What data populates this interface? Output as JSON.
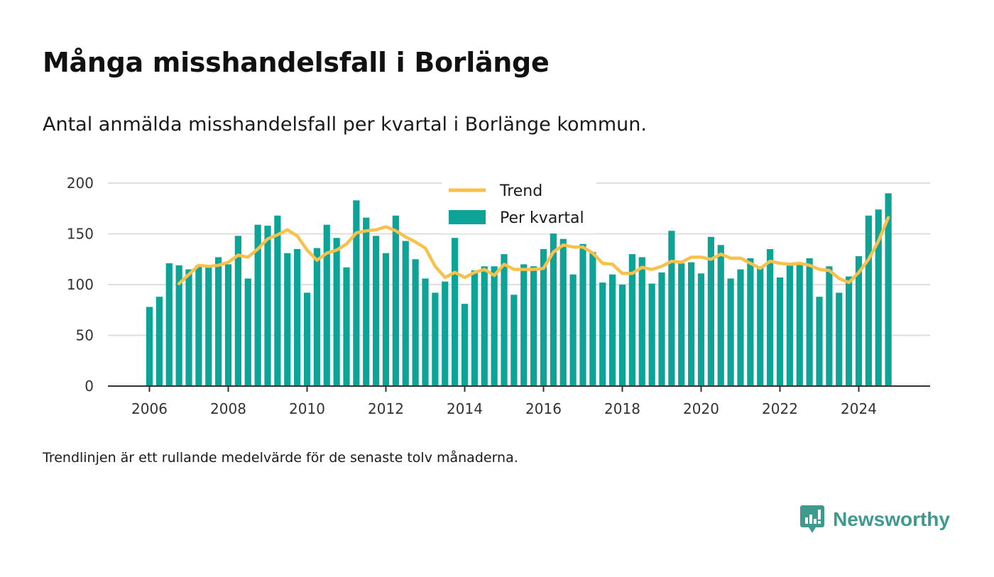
{
  "header": {
    "title": "Många misshandelsfall i Borlänge",
    "subtitle": "Antal anmälda misshandelsfall per kvartal i Borlänge kommun."
  },
  "footnote": "Trendlinjen är ett rullande medelvärde för de senaste tolv månaderna.",
  "brand": {
    "name": "Newsworthy",
    "icon": "newsworthy-logo-icon",
    "color": "#3e9a8f"
  },
  "chart_data": {
    "type": "bar",
    "title": "",
    "xlabel": "",
    "ylabel": "",
    "ylim": [
      0,
      200
    ],
    "yticks": [
      0,
      50,
      100,
      150,
      200
    ],
    "xticks": [
      "2006",
      "2008",
      "2010",
      "2012",
      "2014",
      "2016",
      "2018",
      "2020",
      "2022",
      "2024"
    ],
    "grid": true,
    "legend_placement": "top-center",
    "colors": {
      "bars": "#0da397",
      "trend": "#f8c14c",
      "grid": "#dedede",
      "axis": "#333333"
    },
    "categories": [
      "2006 Q1",
      "2006 Q2",
      "2006 Q3",
      "2006 Q4",
      "2007 Q1",
      "2007 Q2",
      "2007 Q3",
      "2007 Q4",
      "2008 Q1",
      "2008 Q2",
      "2008 Q3",
      "2008 Q4",
      "2009 Q1",
      "2009 Q2",
      "2009 Q3",
      "2009 Q4",
      "2010 Q1",
      "2010 Q2",
      "2010 Q3",
      "2010 Q4",
      "2011 Q1",
      "2011 Q2",
      "2011 Q3",
      "2011 Q4",
      "2012 Q1",
      "2012 Q2",
      "2012 Q3",
      "2012 Q4",
      "2013 Q1",
      "2013 Q2",
      "2013 Q3",
      "2013 Q4",
      "2014 Q1",
      "2014 Q2",
      "2014 Q3",
      "2014 Q4",
      "2015 Q1",
      "2015 Q2",
      "2015 Q3",
      "2015 Q4",
      "2016 Q1",
      "2016 Q2",
      "2016 Q3",
      "2016 Q4",
      "2017 Q1",
      "2017 Q2",
      "2017 Q3",
      "2017 Q4",
      "2018 Q1",
      "2018 Q2",
      "2018 Q3",
      "2018 Q4",
      "2019 Q1",
      "2019 Q2",
      "2019 Q3",
      "2019 Q4",
      "2020 Q1",
      "2020 Q2",
      "2020 Q3",
      "2020 Q4",
      "2021 Q1",
      "2021 Q2",
      "2021 Q3",
      "2021 Q4",
      "2022 Q1",
      "2022 Q2",
      "2022 Q3",
      "2022 Q4",
      "2023 Q1",
      "2023 Q2",
      "2023 Q3",
      "2023 Q4",
      "2024 Q1",
      "2024 Q2",
      "2024 Q3",
      "2024 Q4"
    ],
    "series": [
      {
        "name": "Per kvartal",
        "type": "bar",
        "values": [
          78,
          88,
          121,
          119,
          115,
          119,
          118,
          127,
          120,
          148,
          106,
          159,
          158,
          168,
          131,
          135,
          92,
          136,
          159,
          146,
          117,
          183,
          166,
          148,
          131,
          168,
          143,
          125,
          106,
          92,
          103,
          146,
          81,
          114,
          118,
          118,
          130,
          90,
          120,
          118,
          135,
          153,
          145,
          110,
          140,
          132,
          102,
          110,
          100,
          130,
          127,
          101,
          112,
          153,
          121,
          122,
          111,
          147,
          139,
          106,
          115,
          126,
          118,
          135,
          107,
          120,
          120,
          126,
          88,
          118,
          92,
          108,
          128,
          168,
          174,
          190
        ]
      },
      {
        "name": "Trend",
        "type": "line",
        "values": [
          null,
          null,
          null,
          101,
          110,
          119,
          118,
          119,
          122,
          129,
          127,
          135,
          145,
          149,
          154,
          148,
          134,
          124,
          131,
          134,
          140,
          151,
          153,
          154,
          157,
          153,
          147,
          142,
          136,
          118,
          107,
          112,
          107,
          112,
          115,
          109,
          120,
          115,
          115,
          115,
          116,
          132,
          139,
          137,
          137,
          131,
          121,
          120,
          111,
          111,
          117,
          115,
          118,
          123,
          122,
          127,
          127,
          125,
          130,
          126,
          126,
          121,
          116,
          123,
          121,
          120,
          121,
          119,
          115,
          114,
          106,
          102,
          112,
          125,
          143,
          166
        ]
      }
    ],
    "time_index": {
      "first_year": 2006,
      "last_year": 2024,
      "quarters_per_year": 4
    }
  }
}
